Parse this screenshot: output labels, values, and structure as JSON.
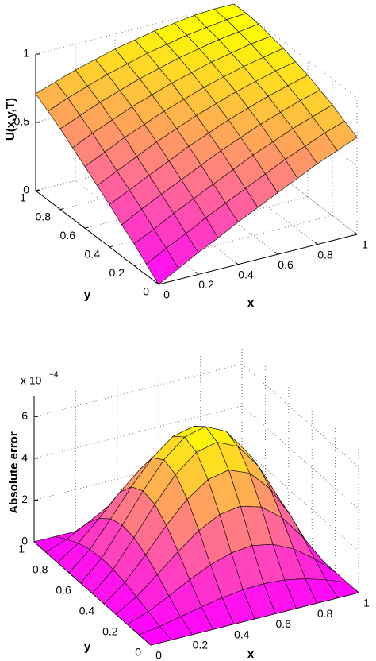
{
  "chart_data": [
    {
      "type": "surface",
      "x_label": "x",
      "y_label": "y",
      "z_label": "U(x,y,T)",
      "x": [
        0,
        0.1,
        0.2,
        0.3,
        0.4,
        0.5,
        0.6,
        0.7,
        0.8,
        0.9,
        1
      ],
      "y": [
        0,
        0.1,
        0.2,
        0.3,
        0.4,
        0.5,
        0.6,
        0.7,
        0.8,
        0.9,
        1
      ],
      "z": [
        [
          0,
          0.08,
          0.16,
          0.23,
          0.31,
          0.38,
          0.45,
          0.52,
          0.59,
          0.65,
          0.71
        ],
        [
          0.08,
          0.16,
          0.23,
          0.31,
          0.38,
          0.45,
          0.52,
          0.59,
          0.65,
          0.71,
          0.76
        ],
        [
          0.16,
          0.23,
          0.31,
          0.38,
          0.45,
          0.52,
          0.59,
          0.65,
          0.71,
          0.76,
          0.81
        ],
        [
          0.23,
          0.31,
          0.38,
          0.45,
          0.52,
          0.59,
          0.65,
          0.71,
          0.76,
          0.81,
          0.85
        ],
        [
          0.31,
          0.38,
          0.45,
          0.52,
          0.59,
          0.65,
          0.71,
          0.76,
          0.81,
          0.85,
          0.89
        ],
        [
          0.38,
          0.45,
          0.52,
          0.59,
          0.65,
          0.71,
          0.76,
          0.81,
          0.85,
          0.89,
          0.92
        ],
        [
          0.45,
          0.52,
          0.59,
          0.65,
          0.71,
          0.76,
          0.81,
          0.85,
          0.89,
          0.92,
          0.95
        ],
        [
          0.52,
          0.59,
          0.65,
          0.71,
          0.76,
          0.81,
          0.85,
          0.89,
          0.92,
          0.95,
          0.97
        ],
        [
          0.59,
          0.65,
          0.71,
          0.76,
          0.81,
          0.85,
          0.89,
          0.92,
          0.95,
          0.97,
          0.99
        ],
        [
          0.65,
          0.71,
          0.76,
          0.81,
          0.85,
          0.89,
          0.92,
          0.95,
          0.97,
          0.99,
          1.0
        ],
        [
          0.71,
          0.76,
          0.81,
          0.85,
          0.89,
          0.92,
          0.95,
          0.97,
          0.99,
          1.0,
          1
        ]
      ],
      "xlim": [
        0,
        1
      ],
      "ylim": [
        0,
        1
      ],
      "zlim": [
        0,
        1
      ],
      "xticks": [
        0,
        0.2,
        0.4,
        0.6,
        0.8,
        1
      ],
      "yticks": [
        0,
        0.2,
        0.4,
        0.6,
        0.8,
        1
      ],
      "zticks": [
        0,
        0.5,
        1
      ],
      "colormap": [
        "#ff00ff",
        "#ffff00"
      ],
      "grid": true
    },
    {
      "type": "surface",
      "x_label": "x",
      "y_label": "y",
      "z_label": "Absolute error",
      "z_multiplier": "x 10",
      "z_exponent": "−4",
      "x": [
        0,
        0.1,
        0.2,
        0.3,
        0.4,
        0.5,
        0.6,
        0.7,
        0.8,
        0.9,
        1
      ],
      "y": [
        0,
        0.1,
        0.2,
        0.3,
        0.4,
        0.5,
        0.6,
        0.7,
        0.8,
        0.9,
        1
      ],
      "z": [
        [
          0,
          0,
          0,
          0,
          0,
          0,
          0,
          0,
          0,
          0,
          0
        ],
        [
          0,
          0.15,
          0.36,
          0.58,
          0.77,
          0.9,
          0.94,
          0.87,
          0.67,
          0.37,
          0
        ],
        [
          0,
          0.36,
          0.86,
          1.39,
          1.85,
          2.17,
          2.27,
          2.08,
          1.61,
          0.89,
          0
        ],
        [
          0,
          0.58,
          1.39,
          2.24,
          3.0,
          3.51,
          3.66,
          3.37,
          2.61,
          1.44,
          0
        ],
        [
          0,
          0.77,
          1.85,
          3.0,
          4.0,
          4.69,
          4.9,
          4.5,
          3.49,
          1.93,
          0
        ],
        [
          0,
          0.9,
          2.17,
          3.51,
          4.69,
          5.5,
          5.74,
          5.28,
          4.08,
          2.26,
          0
        ],
        [
          0,
          0.94,
          2.27,
          3.66,
          4.9,
          5.74,
          5.99,
          5.51,
          4.26,
          2.36,
          0
        ],
        [
          0,
          0.87,
          2.08,
          3.37,
          4.5,
          5.28,
          5.51,
          5.07,
          3.92,
          2.17,
          0
        ],
        [
          0,
          0.67,
          1.61,
          2.61,
          3.49,
          4.08,
          4.26,
          3.92,
          3.03,
          1.68,
          0
        ],
        [
          0,
          0.37,
          0.89,
          1.44,
          1.93,
          2.26,
          2.36,
          2.17,
          1.68,
          0.93,
          0
        ],
        [
          0,
          0,
          0,
          0,
          0,
          0,
          0,
          0,
          0,
          0,
          0
        ]
      ],
      "xlim": [
        0,
        1
      ],
      "ylim": [
        0,
        1
      ],
      "zlim": [
        0,
        7
      ],
      "xticks": [
        0,
        0.2,
        0.4,
        0.6,
        0.8,
        1
      ],
      "yticks": [
        0,
        0.2,
        0.4,
        0.6,
        0.8,
        1
      ],
      "zticks": [
        0,
        2,
        4,
        6
      ],
      "colormap": [
        "#ff00ff",
        "#ffff00"
      ],
      "grid": true
    }
  ]
}
